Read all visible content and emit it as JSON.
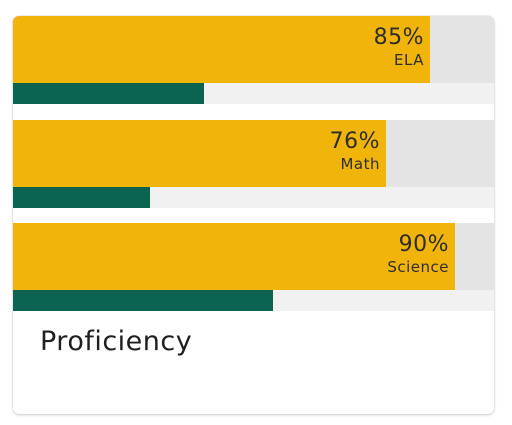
{
  "card": {
    "title": "Proficiency",
    "rows": [
      {
        "subject": "ELA",
        "percent_label": "85%",
        "primary_fraction": 0.85,
        "secondary_fraction": 0.39
      },
      {
        "subject": "Math",
        "percent_label": "76%",
        "primary_fraction": 0.76,
        "secondary_fraction": 0.28
      },
      {
        "subject": "Science",
        "percent_label": "90%",
        "primary_fraction": 0.9,
        "secondary_fraction": 0.53
      }
    ]
  },
  "colors": {
    "primary_bar": "#f0b40a",
    "secondary_bar": "#0c6450",
    "track": "#e4e4e4",
    "secondary_track": "#f1f1f1"
  }
}
